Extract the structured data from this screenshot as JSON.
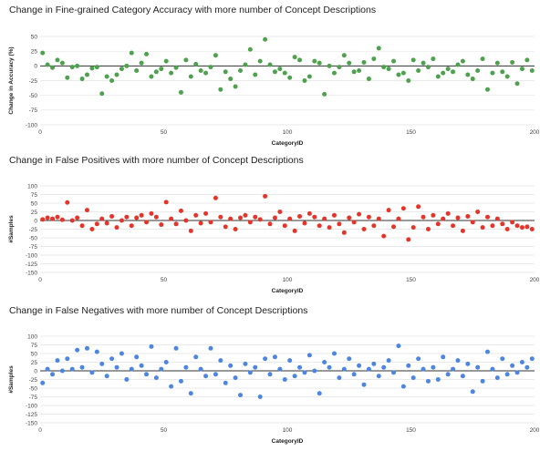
{
  "chart_data": [
    {
      "type": "scatter",
      "title": "Change in Fine-grained Category Accuracy with more number of Concept Descriptions",
      "xlabel": "CategoryID",
      "ylabel": "Change in Accuracy (%)",
      "xlim": [
        0,
        200
      ],
      "ylim": [
        -100,
        50
      ],
      "xticks": [
        0,
        50,
        100,
        150,
        200
      ],
      "yticks": [
        50,
        25,
        0,
        -25,
        -50,
        -75,
        -100
      ],
      "grid": true,
      "color": "#4ea24e",
      "x": [
        1,
        3,
        5,
        7,
        9,
        11,
        13,
        15,
        17,
        19,
        21,
        23,
        25,
        27,
        29,
        31,
        33,
        35,
        37,
        39,
        41,
        43,
        45,
        47,
        49,
        51,
        53,
        55,
        57,
        59,
        61,
        63,
        65,
        67,
        69,
        71,
        73,
        75,
        77,
        79,
        81,
        83,
        85,
        87,
        89,
        91,
        93,
        95,
        97,
        99,
        101,
        103,
        105,
        107,
        109,
        111,
        113,
        115,
        117,
        119,
        121,
        123,
        125,
        127,
        129,
        131,
        133,
        135,
        137,
        139,
        141,
        143,
        145,
        147,
        149,
        151,
        153,
        155,
        157,
        159,
        161,
        163,
        165,
        167,
        169,
        171,
        173,
        175,
        177,
        179,
        181,
        183,
        185,
        187,
        189,
        191,
        193,
        195,
        197,
        199
      ],
      "values": [
        22,
        2,
        -3,
        10,
        5,
        -20,
        -2,
        0,
        -22,
        -15,
        -4,
        -2,
        -47,
        -18,
        -25,
        -15,
        -5,
        0,
        22,
        -8,
        5,
        20,
        -18,
        -10,
        -5,
        8,
        -12,
        -3,
        -45,
        10,
        -18,
        3,
        -8,
        -12,
        -2,
        18,
        -40,
        -10,
        -22,
        -35,
        -8,
        2,
        28,
        -15,
        8,
        45,
        2,
        -10,
        -5,
        -12,
        -20,
        15,
        10,
        -25,
        -18,
        8,
        5,
        -48,
        0,
        -12,
        -2,
        18,
        5,
        -10,
        -8,
        6,
        -22,
        12,
        30,
        -2,
        -5,
        8,
        -15,
        -12,
        -25,
        10,
        -8,
        5,
        -2,
        12,
        -18,
        -12,
        -5,
        -10,
        2,
        8,
        -15,
        -22,
        -8,
        12,
        -40,
        -12,
        5,
        -10,
        -18,
        6,
        -30,
        -5,
        10,
        -8
      ]
    },
    {
      "type": "scatter",
      "title": "Change in False Positives with more number of Concept Descriptions",
      "xlabel": "CategoryID",
      "ylabel": "#Samples",
      "xlim": [
        0,
        200
      ],
      "ylim": [
        -150,
        100
      ],
      "xticks": [
        0,
        50,
        100,
        150,
        200
      ],
      "yticks": [
        100,
        75,
        50,
        25,
        0,
        -25,
        -50,
        -75,
        -100,
        -125,
        -150
      ],
      "grid": true,
      "color": "#e5352b",
      "x": [
        1,
        3,
        5,
        7,
        9,
        11,
        13,
        15,
        17,
        19,
        21,
        23,
        25,
        27,
        29,
        31,
        33,
        35,
        37,
        39,
        41,
        43,
        45,
        47,
        49,
        51,
        53,
        55,
        57,
        59,
        61,
        63,
        65,
        67,
        69,
        71,
        73,
        75,
        77,
        79,
        81,
        83,
        85,
        87,
        89,
        91,
        93,
        95,
        97,
        99,
        101,
        103,
        105,
        107,
        109,
        111,
        113,
        115,
        117,
        119,
        121,
        123,
        125,
        127,
        129,
        131,
        133,
        135,
        137,
        139,
        141,
        143,
        145,
        147,
        149,
        151,
        153,
        155,
        157,
        159,
        161,
        163,
        165,
        167,
        169,
        171,
        173,
        175,
        177,
        179,
        181,
        183,
        185,
        187,
        189,
        191,
        193,
        195,
        197,
        199
      ],
      "values": [
        3,
        8,
        5,
        10,
        2,
        52,
        0,
        8,
        -15,
        30,
        -25,
        -10,
        5,
        -8,
        12,
        -20,
        0,
        10,
        -15,
        8,
        15,
        -5,
        20,
        10,
        -12,
        53,
        5,
        -10,
        28,
        0,
        -30,
        15,
        -8,
        20,
        -5,
        65,
        10,
        -18,
        5,
        -25,
        8,
        15,
        -5,
        10,
        3,
        70,
        -10,
        8,
        25,
        -15,
        5,
        -30,
        12,
        -8,
        20,
        10,
        -15,
        5,
        -20,
        15,
        -10,
        -35,
        8,
        -5,
        18,
        -25,
        10,
        -15,
        5,
        -45,
        30,
        -18,
        5,
        35,
        -55,
        -20,
        40,
        10,
        -25,
        15,
        -10,
        5,
        20,
        -15,
        8,
        -30,
        12,
        -5,
        25,
        -20,
        10,
        -15,
        5,
        -10,
        -25,
        -5,
        -15,
        -20,
        -18,
        -25
      ]
    },
    {
      "type": "scatter",
      "title": "Change in False Negatives with more number of Concept Descriptions",
      "xlabel": "CategoryID",
      "ylabel": "#Samples",
      "xlim": [
        0,
        200
      ],
      "ylim": [
        -150,
        100
      ],
      "xticks": [
        0,
        50,
        100,
        150,
        200
      ],
      "yticks": [
        100,
        75,
        50,
        25,
        0,
        -25,
        -50,
        -75,
        -100,
        -125,
        -150
      ],
      "grid": true,
      "color": "#4c86e0",
      "x": [
        1,
        3,
        5,
        7,
        9,
        11,
        13,
        15,
        17,
        19,
        21,
        23,
        25,
        27,
        29,
        31,
        33,
        35,
        37,
        39,
        41,
        43,
        45,
        47,
        49,
        51,
        53,
        55,
        57,
        59,
        61,
        63,
        65,
        67,
        69,
        71,
        73,
        75,
        77,
        79,
        81,
        83,
        85,
        87,
        89,
        91,
        93,
        95,
        97,
        99,
        101,
        103,
        105,
        107,
        109,
        111,
        113,
        115,
        117,
        119,
        121,
        123,
        125,
        127,
        129,
        131,
        133,
        135,
        137,
        139,
        141,
        143,
        145,
        147,
        149,
        151,
        153,
        155,
        157,
        159,
        161,
        163,
        165,
        167,
        169,
        171,
        173,
        175,
        177,
        179,
        181,
        183,
        185,
        187,
        189,
        191,
        193,
        195,
        197,
        199
      ],
      "values": [
        -35,
        5,
        -10,
        30,
        0,
        35,
        5,
        60,
        10,
        65,
        -5,
        55,
        20,
        -15,
        35,
        10,
        50,
        -25,
        5,
        40,
        15,
        -10,
        70,
        -20,
        5,
        25,
        -45,
        65,
        -30,
        10,
        -65,
        40,
        5,
        -15,
        65,
        -10,
        30,
        -35,
        15,
        -20,
        -70,
        20,
        -5,
        10,
        -75,
        35,
        -10,
        40,
        5,
        -25,
        30,
        -15,
        10,
        -5,
        45,
        0,
        -65,
        25,
        10,
        50,
        -20,
        5,
        35,
        -10,
        15,
        -40,
        5,
        20,
        -15,
        10,
        30,
        -5,
        72,
        -45,
        15,
        -20,
        35,
        5,
        -30,
        10,
        -25,
        40,
        -10,
        5,
        30,
        -15,
        20,
        -60,
        10,
        -30,
        55,
        5,
        -20,
        35,
        -10,
        15,
        -5,
        25,
        10,
        35
      ]
    }
  ]
}
